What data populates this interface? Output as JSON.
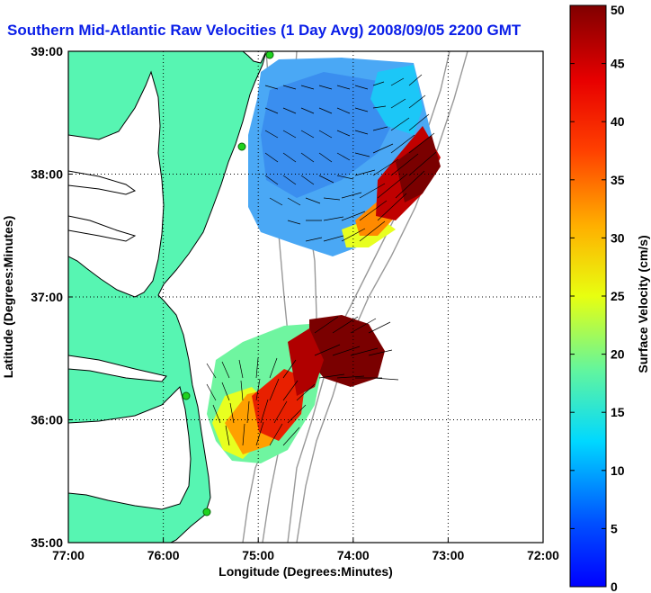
{
  "title": "Southern Mid-Atlantic Raw Velocities (1 Day Avg) 2008/09/05 2200 GMT",
  "xlabel": "Longitude (Degrees:Minutes)",
  "ylabel": "Latitude (Degrees:Minutes)",
  "x_ticks": [
    "77:00",
    "76:00",
    "75:00",
    "74:00",
    "73:00",
    "72:00"
  ],
  "y_ticks": [
    "39:00",
    "38:00",
    "37:00",
    "36:00",
    "35:00"
  ],
  "colorbar": {
    "label": "Surface Velocity (cm/s)",
    "min": 0,
    "max": 50,
    "ticks": [
      "0",
      "5",
      "10",
      "15",
      "20",
      "25",
      "30",
      "35",
      "40",
      "45",
      "50"
    ]
  },
  "extent": {
    "lon": [
      -77,
      -72
    ],
    "lat": [
      35,
      39
    ]
  },
  "colors": {
    "land": "#57f5b2",
    "title": "#0a1ee8",
    "station": "#1fd21f"
  },
  "grid": true
}
